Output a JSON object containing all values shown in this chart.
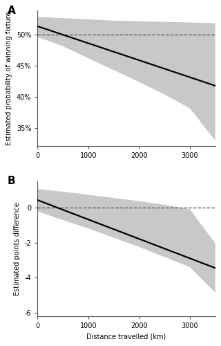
{
  "panel_a": {
    "label": "A",
    "ylabel": "Estimated probability of winning fixture",
    "dashed_y": 0.5,
    "line_x": [
      0,
      3500
    ],
    "line_y_start": 0.513,
    "line_y_end": 0.418,
    "ci_upper_x": [
      0,
      500,
      1000,
      1500,
      2000,
      2500,
      3000,
      3500
    ],
    "ci_upper_y": [
      0.528,
      0.526,
      0.524,
      0.522,
      0.521,
      0.52,
      0.519,
      0.518
    ],
    "ci_lower_x": [
      0,
      500,
      1000,
      1500,
      2000,
      2500,
      3000,
      3500
    ],
    "ci_lower_y": [
      0.496,
      0.481,
      0.462,
      0.443,
      0.424,
      0.404,
      0.382,
      0.33
    ],
    "ylim": [
      0.322,
      0.538
    ],
    "yticks": [
      0.35,
      0.4,
      0.45,
      0.5
    ],
    "ytick_labels": [
      "35%",
      "40%",
      "45%",
      "50%"
    ]
  },
  "panel_b": {
    "label": "B",
    "ylabel": "Estimated points difference",
    "xlabel": "Distance travelled (km)",
    "dashed_y": 0.0,
    "line_x": [
      0,
      3500
    ],
    "line_y_start": 0.42,
    "line_y_end": -3.45,
    "ci_upper_x": [
      0,
      500,
      1000,
      1500,
      2000,
      2500,
      3000,
      3500
    ],
    "ci_upper_y": [
      1.05,
      0.9,
      0.72,
      0.54,
      0.36,
      0.15,
      -0.1,
      -2.05
    ],
    "ci_lower_x": [
      0,
      500,
      1000,
      1500,
      2000,
      2500,
      3000,
      3500
    ],
    "ci_lower_y": [
      -0.22,
      -0.72,
      -1.2,
      -1.72,
      -2.25,
      -2.82,
      -3.4,
      -4.85
    ],
    "ylim": [
      -6.2,
      1.5
    ],
    "yticks": [
      -6,
      -4,
      -2,
      0
    ],
    "ytick_labels": [
      "-6",
      "-4",
      "-2",
      "0"
    ]
  },
  "xlim": [
    0,
    3500
  ],
  "xticks": [
    0,
    1000,
    2000,
    3000
  ],
  "ci_color": "#c8c8c8",
  "line_color": "#000000",
  "dashed_color": "#555555",
  "background_color": "#ffffff",
  "spine_color": "#555555"
}
